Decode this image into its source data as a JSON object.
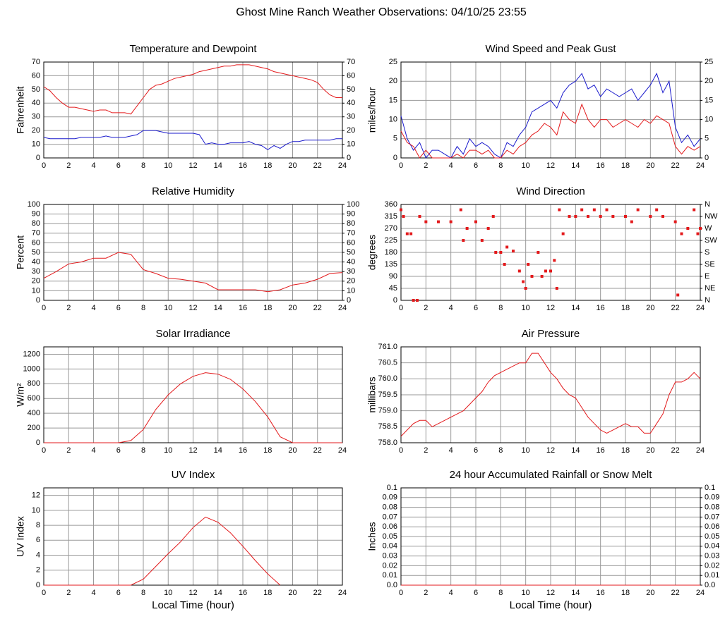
{
  "title": "Ghost Mine Ranch Weather Observations: 04/10/25 23:55",
  "chart_data": [
    {
      "type": "line",
      "title": "Temperature and Dewpoint",
      "ylabel": "Fahrenheit",
      "x": [
        0,
        0.5,
        1,
        1.5,
        2,
        2.5,
        3,
        3.5,
        4,
        4.5,
        5,
        5.5,
        6,
        6.5,
        7,
        7.5,
        8,
        8.5,
        9,
        9.5,
        10,
        10.5,
        11,
        11.5,
        12,
        12.5,
        13,
        13.5,
        14,
        14.5,
        15,
        15.5,
        16,
        16.5,
        17,
        17.5,
        18,
        18.5,
        19,
        19.5,
        20,
        20.5,
        21,
        21.5,
        22,
        22.5,
        23,
        23.5,
        24
      ],
      "series": [
        {
          "color": "#e31a1c",
          "values": [
            52,
            49,
            44,
            40,
            37,
            37,
            36,
            35,
            34,
            35,
            35,
            33,
            33,
            33,
            32,
            38,
            44,
            50,
            53,
            54,
            56,
            58,
            59,
            60,
            61,
            63,
            64,
            65,
            66,
            67,
            67,
            68,
            68,
            68,
            67,
            66,
            65,
            63,
            62,
            61,
            60,
            59,
            58,
            57,
            55,
            50,
            46,
            44,
            44
          ]
        },
        {
          "color": "#1a1acc",
          "values": [
            15,
            14,
            14,
            14,
            14,
            14,
            15,
            15,
            15,
            15,
            16,
            15,
            15,
            15,
            16,
            17,
            20,
            20,
            20,
            19,
            18,
            18,
            18,
            18,
            18,
            17,
            10,
            11,
            10,
            10,
            11,
            11,
            11,
            12,
            10,
            9,
            6,
            9,
            7,
            10,
            12,
            12,
            13,
            13,
            13,
            13,
            13,
            14,
            14
          ]
        }
      ],
      "xlim": [
        0,
        24
      ],
      "xticks": [
        0,
        2,
        4,
        6,
        8,
        10,
        12,
        14,
        16,
        18,
        20,
        22,
        24
      ],
      "ylim": [
        0,
        70
      ],
      "yticks": [
        0,
        10,
        20,
        30,
        40,
        50,
        60,
        70
      ],
      "y2lim": [
        0,
        70
      ],
      "y2ticks": [
        0,
        10,
        20,
        30,
        40,
        50,
        60,
        70
      ],
      "grid": true
    },
    {
      "type": "line",
      "title": "Wind Speed and Peak Gust",
      "ylabel": "miles/hour",
      "x": [
        0,
        0.5,
        1,
        1.5,
        2,
        2.5,
        3,
        3.5,
        4,
        4.5,
        5,
        5.5,
        6,
        6.5,
        7,
        7.5,
        8,
        8.5,
        9,
        9.5,
        10,
        10.5,
        11,
        11.5,
        12,
        12.5,
        13,
        13.5,
        14,
        14.5,
        15,
        15.5,
        16,
        16.5,
        17,
        17.5,
        18,
        18.5,
        19,
        19.5,
        20,
        20.5,
        21,
        21.5,
        22,
        22.5,
        23,
        23.5,
        24
      ],
      "series": [
        {
          "color": "#1a1acc",
          "values": [
            11,
            5,
            2,
            4,
            0,
            2,
            2,
            1,
            0,
            3,
            1,
            5,
            3,
            4,
            3,
            1,
            0,
            4,
            3,
            6,
            8,
            12,
            13,
            14,
            15,
            13,
            17,
            19,
            20,
            22,
            18,
            19,
            16,
            18,
            17,
            16,
            17,
            18,
            15,
            17,
            19,
            22,
            17,
            20,
            8,
            4,
            6,
            3,
            5
          ]
        },
        {
          "color": "#e31a1c",
          "values": [
            7,
            4,
            3,
            0,
            2,
            0,
            0,
            0,
            0,
            1,
            0,
            2,
            2,
            1,
            2,
            0,
            0,
            2,
            1,
            3,
            4,
            6,
            7,
            9,
            8,
            6,
            12,
            10,
            9,
            14,
            10,
            8,
            10,
            10,
            8,
            9,
            10,
            9,
            8,
            10,
            9,
            11,
            10,
            9,
            3,
            1,
            3,
            2,
            3
          ]
        }
      ],
      "xlim": [
        0,
        24
      ],
      "xticks": [
        0,
        2,
        4,
        6,
        8,
        10,
        12,
        14,
        16,
        18,
        20,
        22,
        24
      ],
      "ylim": [
        0,
        25
      ],
      "yticks": [
        0,
        5,
        10,
        15,
        20,
        25
      ],
      "y2lim": [
        0,
        25
      ],
      "y2ticks": [
        0,
        5,
        10,
        15,
        20,
        25
      ],
      "grid": true
    },
    {
      "type": "line",
      "title": "Relative Humidity",
      "ylabel": "Percent",
      "x": [
        0,
        1,
        2,
        3,
        4,
        5,
        6,
        7,
        8,
        9,
        10,
        11,
        12,
        13,
        14,
        15,
        16,
        17,
        18,
        19,
        20,
        21,
        22,
        23,
        24
      ],
      "series": [
        {
          "color": "#e31a1c",
          "values": [
            23,
            30,
            38,
            40,
            44,
            44,
            50,
            48,
            32,
            28,
            23,
            22,
            20,
            18,
            11,
            11,
            11,
            11,
            9,
            11,
            16,
            18,
            22,
            28,
            29
          ]
        }
      ],
      "xlim": [
        0,
        24
      ],
      "xticks": [
        0,
        2,
        4,
        6,
        8,
        10,
        12,
        14,
        16,
        18,
        20,
        22,
        24
      ],
      "ylim": [
        0,
        100
      ],
      "yticks": [
        0,
        10,
        20,
        30,
        40,
        50,
        60,
        70,
        80,
        90,
        100
      ],
      "y2lim": [
        0,
        100
      ],
      "y2ticks": [
        0,
        10,
        20,
        30,
        40,
        50,
        60,
        70,
        80,
        90,
        100
      ],
      "grid": true
    },
    {
      "type": "scatter",
      "title": "Wind Direction",
      "ylabel": "degrees",
      "x": [
        0,
        0.2,
        0.5,
        0.8,
        1,
        1.3,
        1.5,
        2,
        3,
        4,
        4.8,
        5,
        5.3,
        6,
        6.5,
        7,
        7.4,
        7.6,
        8,
        8.3,
        8.5,
        9,
        9.5,
        9.8,
        10,
        10.2,
        10.5,
        11,
        11.3,
        11.6,
        12,
        12.3,
        12.5,
        12.7,
        13,
        13.5,
        14,
        14.5,
        15,
        15.5,
        16,
        16.5,
        17,
        18,
        18.5,
        19,
        20,
        20.5,
        21,
        22,
        22.2,
        22.5,
        23,
        23.5,
        23.8,
        24
      ],
      "series": [
        {
          "color": "#e31a1c",
          "values": [
            340,
            315,
            250,
            250,
            0,
            0,
            315,
            295,
            295,
            295,
            340,
            225,
            270,
            295,
            225,
            270,
            315,
            180,
            180,
            135,
            200,
            185,
            110,
            70,
            45,
            135,
            90,
            180,
            90,
            110,
            110,
            150,
            45,
            340,
            250,
            315,
            315,
            340,
            315,
            340,
            315,
            340,
            315,
            315,
            295,
            340,
            315,
            340,
            315,
            295,
            20,
            250,
            270,
            340,
            250,
            270
          ]
        }
      ],
      "xlim": [
        0,
        24
      ],
      "xticks": [
        0,
        2,
        4,
        6,
        8,
        10,
        12,
        14,
        16,
        18,
        20,
        22,
        24
      ],
      "ylim": [
        0,
        360
      ],
      "yticks": [
        0,
        45,
        90,
        135,
        180,
        225,
        270,
        315,
        360
      ],
      "y2lim": [
        0,
        360
      ],
      "y2ticks": [
        {
          "value": 0,
          "label": "N"
        },
        {
          "value": 45,
          "label": "NE"
        },
        {
          "value": 90,
          "label": "E"
        },
        {
          "value": 135,
          "label": "SE"
        },
        {
          "value": 180,
          "label": "S"
        },
        {
          "value": 225,
          "label": "SW"
        },
        {
          "value": 270,
          "label": "W"
        },
        {
          "value": 315,
          "label": "NW"
        },
        {
          "value": 360,
          "label": "N"
        }
      ],
      "grid": true
    },
    {
      "type": "line",
      "title": "Solar Irradiance",
      "ylabel": "W/m²",
      "x": [
        0,
        1,
        2,
        3,
        4,
        5,
        6,
        7,
        8,
        9,
        10,
        11,
        12,
        13,
        14,
        15,
        16,
        17,
        18,
        19,
        20,
        21,
        22,
        23,
        24
      ],
      "series": [
        {
          "color": "#e31a1c",
          "values": [
            0,
            0,
            0,
            0,
            0,
            0,
            0,
            30,
            180,
            450,
            650,
            800,
            900,
            950,
            930,
            860,
            730,
            560,
            350,
            80,
            0,
            0,
            0,
            0,
            0
          ]
        }
      ],
      "xlim": [
        0,
        24
      ],
      "xticks": [
        0,
        2,
        4,
        6,
        8,
        10,
        12,
        14,
        16,
        18,
        20,
        22,
        24
      ],
      "ylim": [
        0,
        1300
      ],
      "yticks": [
        0,
        200,
        400,
        600,
        800,
        1000,
        1200
      ],
      "grid": true
    },
    {
      "type": "line",
      "title": "Air Pressure",
      "ylabel": "millibars",
      "x": [
        0,
        0.5,
        1,
        1.5,
        2,
        2.5,
        3,
        3.5,
        4,
        4.5,
        5,
        5.5,
        6,
        6.5,
        7,
        7.5,
        8,
        8.5,
        9,
        9.5,
        10,
        10.5,
        11,
        11.5,
        12,
        12.5,
        13,
        13.5,
        14,
        14.5,
        15,
        15.5,
        16,
        16.5,
        17,
        17.5,
        18,
        18.5,
        19,
        19.5,
        20,
        20.5,
        21,
        21.5,
        22,
        22.5,
        23,
        23.5,
        24
      ],
      "series": [
        {
          "color": "#e31a1c",
          "values": [
            758.2,
            758.4,
            758.6,
            758.7,
            758.7,
            758.5,
            758.6,
            758.7,
            758.8,
            758.9,
            759.0,
            759.2,
            759.4,
            759.6,
            759.9,
            760.1,
            760.2,
            760.3,
            760.4,
            760.5,
            760.5,
            760.8,
            760.8,
            760.5,
            760.2,
            760.0,
            759.7,
            759.5,
            759.4,
            759.1,
            758.8,
            758.6,
            758.4,
            758.3,
            758.4,
            758.5,
            758.6,
            758.5,
            758.5,
            758.3,
            758.3,
            758.6,
            758.9,
            759.5,
            759.9,
            759.9,
            760.0,
            760.2,
            760.0
          ]
        }
      ],
      "xlim": [
        0,
        24
      ],
      "xticks": [
        0,
        2,
        4,
        6,
        8,
        10,
        12,
        14,
        16,
        18,
        20,
        22,
        24
      ],
      "ylim": [
        758,
        761
      ],
      "yticks": [
        {
          "value": 758,
          "label": "758.0"
        },
        758.5,
        {
          "value": 759,
          "label": "759.0"
        },
        759.5,
        {
          "value": 760,
          "label": "760.0"
        },
        760.5,
        {
          "value": 761,
          "label": "761.0"
        }
      ],
      "grid": true
    },
    {
      "type": "line",
      "title": "UV Index",
      "ylabel": "UV Index",
      "xlabel": "Local Time (hour)",
      "x": [
        0,
        1,
        2,
        3,
        4,
        5,
        6,
        7,
        8,
        9,
        10,
        11,
        12,
        13,
        14,
        15,
        16,
        17,
        18,
        19,
        20,
        21,
        22,
        23,
        24
      ],
      "series": [
        {
          "color": "#e31a1c",
          "values": [
            0,
            0,
            0,
            0,
            0,
            0,
            0,
            0,
            0.8,
            2.5,
            4.2,
            5.8,
            7.7,
            9.1,
            8.4,
            7.0,
            5.2,
            3.3,
            1.5,
            0,
            null,
            null,
            null,
            null,
            null
          ]
        }
      ],
      "xlim": [
        0,
        24
      ],
      "xticks": [
        0,
        2,
        4,
        6,
        8,
        10,
        12,
        14,
        16,
        18,
        20,
        22,
        24
      ],
      "ylim": [
        0,
        13
      ],
      "yticks": [
        0,
        2,
        4,
        6,
        8,
        10,
        12
      ],
      "grid": true
    },
    {
      "type": "line",
      "title": "24 hour Accumulated Rainfall or Snow Melt",
      "ylabel": "Inches",
      "xlabel": "Local Time (hour)",
      "x": [
        0,
        24
      ],
      "series": [
        {
          "color": "#e31a1c",
          "values": [
            0,
            0
          ]
        }
      ],
      "xlim": [
        0,
        24
      ],
      "xticks": [
        0,
        2,
        4,
        6,
        8,
        10,
        12,
        14,
        16,
        18,
        20,
        22,
        24
      ],
      "ylim": [
        0,
        0.1
      ],
      "yticks": [
        {
          "value": 0,
          "label": "0.0"
        },
        0.01,
        0.02,
        0.03,
        0.04,
        0.05,
        0.06,
        0.07,
        0.08,
        0.09,
        0.1
      ],
      "y2lim": [
        0,
        0.1
      ],
      "y2ticks": [
        {
          "value": 0,
          "label": "0.0"
        },
        0.01,
        0.02,
        0.03,
        0.04,
        0.05,
        0.06,
        0.07,
        0.08,
        0.09,
        0.1
      ],
      "grid": true
    }
  ]
}
